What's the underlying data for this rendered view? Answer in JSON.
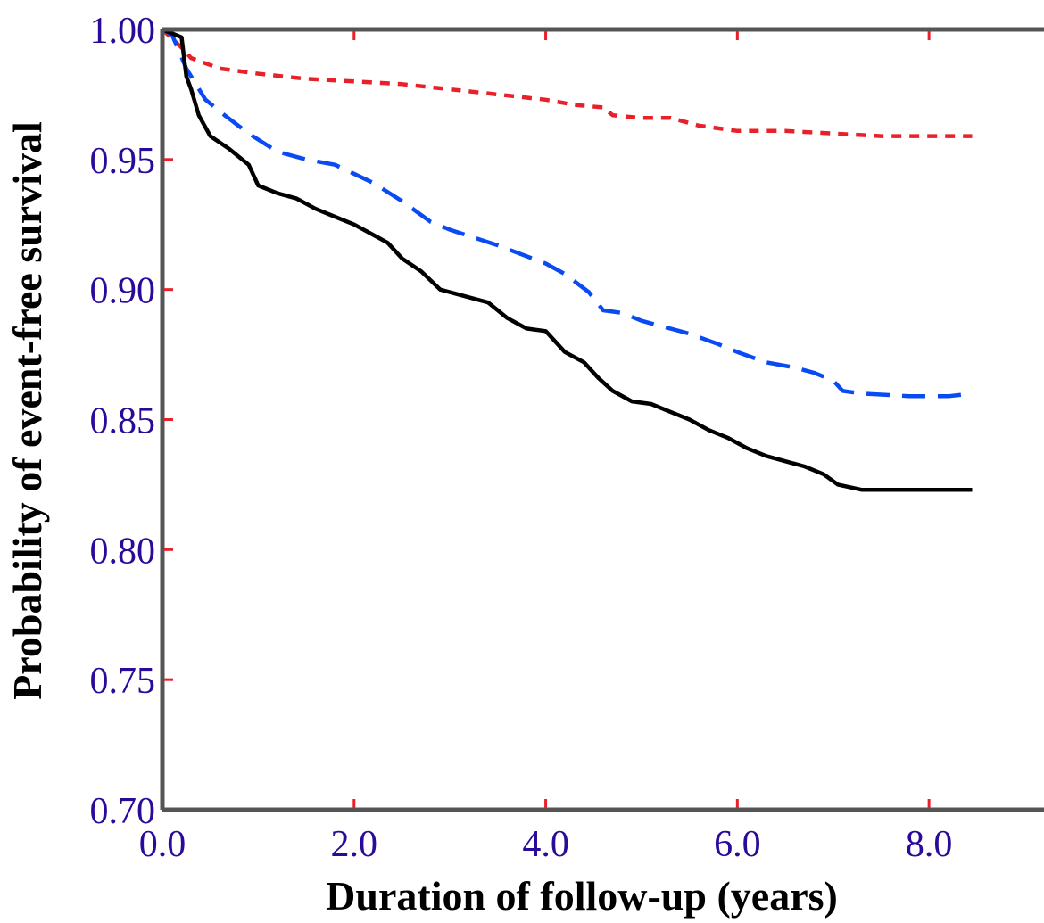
{
  "colors": {
    "axis": "#555555",
    "tick_mark": "#e8202a",
    "tick_label": "#2a0a9a",
    "title": "#000000"
  },
  "chart_data": {
    "type": "line",
    "title": "",
    "xlabel": "Duration of follow-up (years)",
    "ylabel": "Probability of event-free survival",
    "xlim": [
      0,
      9.2
    ],
    "ylim": [
      0.7,
      1.0
    ],
    "x_ticks": [
      0,
      2,
      4,
      6,
      8
    ],
    "x_tick_labels": [
      "0.0",
      "2.0",
      "4.0",
      "6.0",
      "8.0"
    ],
    "y_ticks": [
      0.7,
      0.75,
      0.8,
      0.85,
      0.9,
      0.95,
      1.0
    ],
    "y_tick_labels": [
      "0.70",
      "0.75",
      "0.80",
      "0.85",
      "0.90",
      "0.95",
      "1.00"
    ],
    "grid": false,
    "legend": "none",
    "series": [
      {
        "color": "#e8202a",
        "style": "dotted",
        "points": [
          [
            0,
            1.0
          ],
          [
            0.2,
            0.993
          ],
          [
            0.3,
            0.989
          ],
          [
            0.6,
            0.985
          ],
          [
            1.0,
            0.983
          ],
          [
            1.5,
            0.981
          ],
          [
            2.0,
            0.98
          ],
          [
            2.5,
            0.979
          ],
          [
            3.0,
            0.977
          ],
          [
            3.5,
            0.975
          ],
          [
            4.0,
            0.973
          ],
          [
            4.3,
            0.971
          ],
          [
            4.6,
            0.97
          ],
          [
            4.7,
            0.967
          ],
          [
            5.0,
            0.966
          ],
          [
            5.3,
            0.966
          ],
          [
            5.6,
            0.963
          ],
          [
            6.0,
            0.961
          ],
          [
            6.5,
            0.961
          ],
          [
            7.0,
            0.96
          ],
          [
            7.5,
            0.959
          ],
          [
            8.0,
            0.959
          ],
          [
            8.45,
            0.959
          ]
        ]
      },
      {
        "color": "#0a4af5",
        "style": "dashed",
        "points": [
          [
            0,
            1.0
          ],
          [
            0.1,
            0.998
          ],
          [
            0.25,
            0.985
          ],
          [
            0.45,
            0.973
          ],
          [
            0.65,
            0.967
          ],
          [
            0.9,
            0.96
          ],
          [
            1.2,
            0.953
          ],
          [
            1.5,
            0.95
          ],
          [
            1.8,
            0.948
          ],
          [
            2.2,
            0.941
          ],
          [
            2.5,
            0.934
          ],
          [
            2.8,
            0.926
          ],
          [
            3.0,
            0.923
          ],
          [
            3.5,
            0.917
          ],
          [
            4.0,
            0.91
          ],
          [
            4.2,
            0.906
          ],
          [
            4.45,
            0.899
          ],
          [
            4.6,
            0.892
          ],
          [
            4.8,
            0.891
          ],
          [
            5.0,
            0.888
          ],
          [
            5.2,
            0.886
          ],
          [
            5.5,
            0.883
          ],
          [
            5.8,
            0.879
          ],
          [
            6.0,
            0.876
          ],
          [
            6.3,
            0.872
          ],
          [
            6.6,
            0.87
          ],
          [
            6.8,
            0.868
          ],
          [
            7.0,
            0.865
          ],
          [
            7.1,
            0.861
          ],
          [
            7.3,
            0.86
          ],
          [
            7.8,
            0.859
          ],
          [
            8.2,
            0.859
          ],
          [
            8.45,
            0.86
          ]
        ]
      },
      {
        "color": "#000000",
        "style": "solid",
        "points": [
          [
            0,
            1.0
          ],
          [
            0.2,
            0.997
          ],
          [
            0.25,
            0.982
          ],
          [
            0.3,
            0.977
          ],
          [
            0.38,
            0.967
          ],
          [
            0.5,
            0.959
          ],
          [
            0.7,
            0.954
          ],
          [
            0.9,
            0.948
          ],
          [
            1.0,
            0.94
          ],
          [
            1.2,
            0.937
          ],
          [
            1.4,
            0.935
          ],
          [
            1.6,
            0.931
          ],
          [
            1.8,
            0.928
          ],
          [
            2.0,
            0.925
          ],
          [
            2.2,
            0.921
          ],
          [
            2.35,
            0.918
          ],
          [
            2.5,
            0.912
          ],
          [
            2.7,
            0.907
          ],
          [
            2.9,
            0.9
          ],
          [
            3.2,
            0.897
          ],
          [
            3.4,
            0.895
          ],
          [
            3.6,
            0.889
          ],
          [
            3.8,
            0.885
          ],
          [
            4.0,
            0.884
          ],
          [
            4.2,
            0.876
          ],
          [
            4.4,
            0.872
          ],
          [
            4.55,
            0.866
          ],
          [
            4.7,
            0.861
          ],
          [
            4.9,
            0.857
          ],
          [
            5.1,
            0.856
          ],
          [
            5.3,
            0.853
          ],
          [
            5.5,
            0.85
          ],
          [
            5.7,
            0.846
          ],
          [
            5.9,
            0.843
          ],
          [
            6.1,
            0.839
          ],
          [
            6.3,
            0.836
          ],
          [
            6.5,
            0.834
          ],
          [
            6.7,
            0.832
          ],
          [
            6.9,
            0.829
          ],
          [
            7.05,
            0.825
          ],
          [
            7.3,
            0.823
          ],
          [
            7.6,
            0.823
          ],
          [
            8.0,
            0.823
          ],
          [
            8.45,
            0.823
          ]
        ]
      }
    ]
  }
}
